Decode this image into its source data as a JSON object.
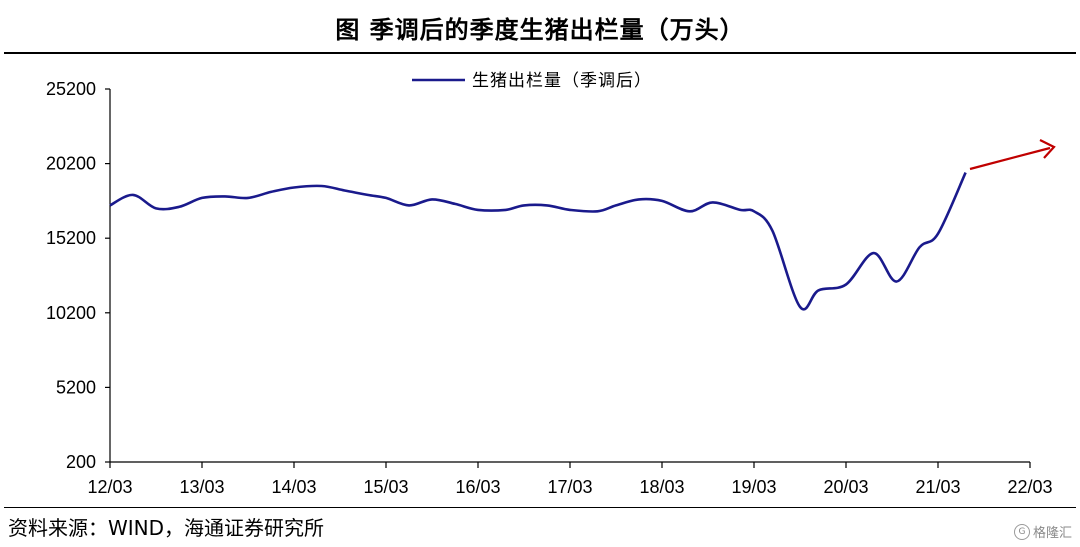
{
  "title": "图  季调后的季度生猪出栏量（万头）",
  "source": "资料来源：WIND，海通证券研究所",
  "watermark": "格隆汇",
  "colors": {
    "series": "#1a1a8c",
    "arrow": "#c00000",
    "axis": "#000000"
  },
  "chart_data": {
    "type": "line",
    "title": "图  季调后的季度生猪出栏量（万头）",
    "xlabel": "",
    "ylabel": "",
    "ylim": [
      200,
      25200
    ],
    "yticks": [
      200,
      5200,
      10200,
      15200,
      20200,
      25200
    ],
    "xticks": [
      "12/03",
      "13/03",
      "14/03",
      "15/03",
      "16/03",
      "17/03",
      "18/03",
      "19/03",
      "20/03",
      "21/03",
      "22/03"
    ],
    "legend": "top-center",
    "grid": false,
    "series": [
      {
        "name": "生猪出栏量（季调后）",
        "x": [
          0,
          0.25,
          0.5,
          0.75,
          1,
          1.25,
          1.5,
          1.75,
          2,
          2.3,
          2.55,
          2.8,
          3,
          3.25,
          3.5,
          3.75,
          4,
          4.3,
          4.5,
          4.75,
          5,
          5.3,
          5.5,
          5.75,
          6,
          6.3,
          6.55,
          6.85,
          7,
          7.2,
          7.5,
          7.7,
          8,
          8.3,
          8.55,
          8.8,
          9,
          9.3
        ],
        "values": [
          17400,
          18100,
          17200,
          17300,
          17900,
          18000,
          17900,
          18300,
          18600,
          18700,
          18400,
          18100,
          17900,
          17400,
          17800,
          17500,
          17100,
          17100,
          17400,
          17400,
          17100,
          17000,
          17400,
          17800,
          17700,
          17000,
          17600,
          17100,
          17000,
          15700,
          10600,
          11700,
          12100,
          14200,
          12300,
          14600,
          15500,
          19600
        ]
      }
    ],
    "annotations": [
      "upward trend arrow after 21/03"
    ]
  }
}
